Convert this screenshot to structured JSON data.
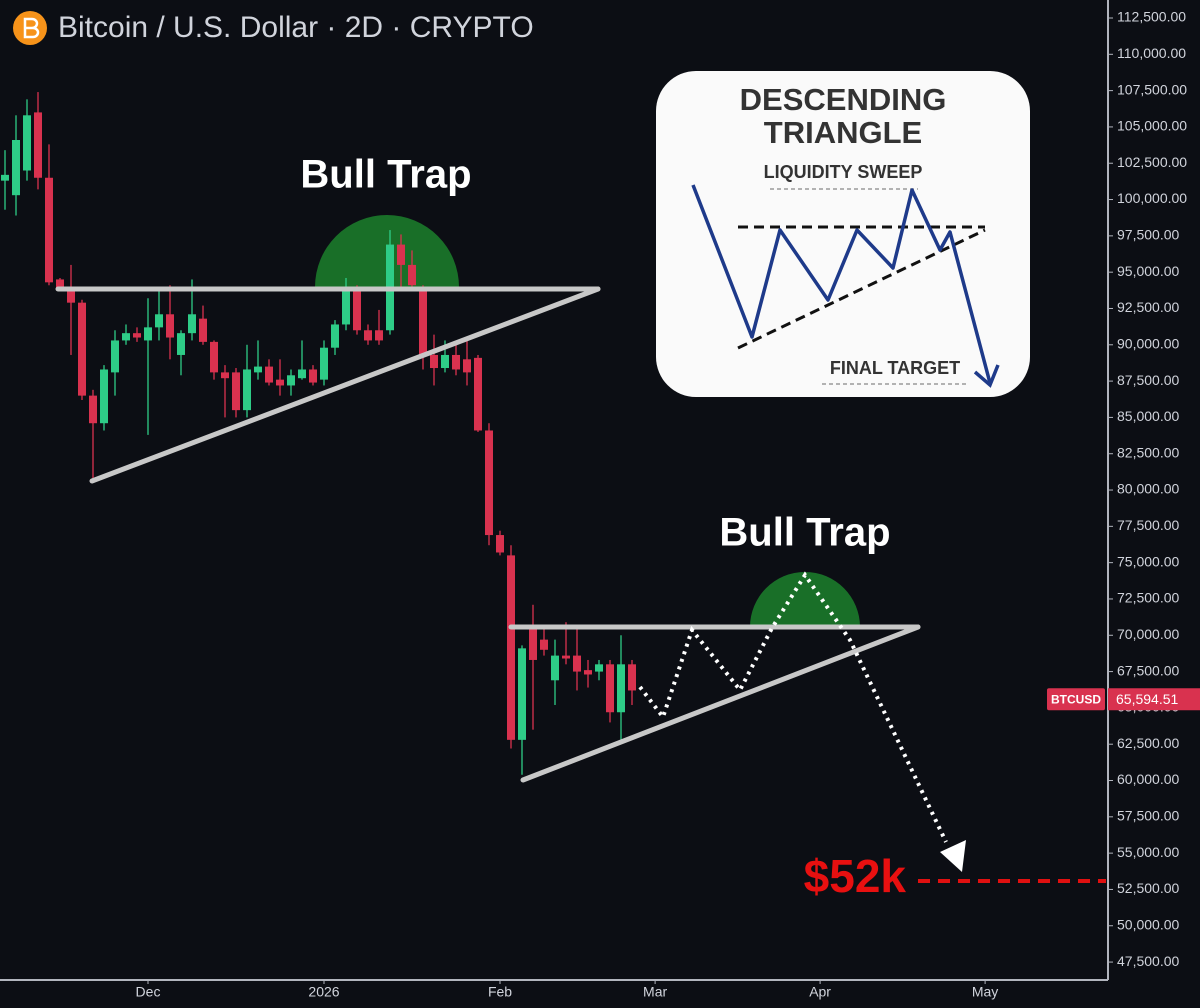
{
  "chart_data": {
    "type": "candlestick",
    "title": "Bitcoin / U.S. Dollar · 2D · CRYPTO",
    "up_color": "#2ecc87",
    "down_color": "#d9324f",
    "open": [
      101300,
      100300,
      102000,
      106000,
      101500,
      94500,
      93800,
      92900,
      86500,
      84600,
      88100,
      90300,
      90800,
      90300,
      91200,
      92100,
      89300,
      90800,
      91800,
      90200,
      88100,
      88100,
      85500,
      88100,
      88500,
      87600,
      87200,
      87700,
      88300,
      87600,
      89800,
      91400,
      93800,
      91000,
      91000,
      91000,
      96900,
      95500,
      93800,
      89300,
      88400,
      89300,
      89000,
      89100,
      84100,
      76900,
      75500,
      62800,
      70400,
      69700,
      66900,
      68600,
      68600,
      67600,
      67500,
      68000,
      64700,
      68000
    ],
    "high": [
      103400,
      105800,
      106900,
      107400,
      103800,
      94600,
      95500,
      93100,
      86900,
      88600,
      91000,
      91400,
      91200,
      93200,
      93800,
      94100,
      91000,
      94500,
      92700,
      90300,
      88600,
      88400,
      90000,
      90300,
      89000,
      89000,
      88300,
      90300,
      88600,
      90300,
      91700,
      94600,
      94100,
      91400,
      92400,
      97900,
      97600,
      96500,
      94100,
      90700,
      90300,
      90000,
      90300,
      89300,
      84600,
      77200,
      76200,
      69300,
      72100,
      70500,
      69700,
      70900,
      70400,
      68300,
      68300,
      68300,
      70000,
      68300
    ],
    "low": [
      99300,
      98900,
      101300,
      100700,
      94100,
      93800,
      89300,
      86200,
      80800,
      84100,
      86500,
      90000,
      90200,
      83800,
      90300,
      89000,
      87900,
      90300,
      90000,
      87600,
      85000,
      85000,
      85000,
      87600,
      87200,
      86500,
      86500,
      87600,
      87200,
      87200,
      89300,
      91000,
      90700,
      90000,
      90000,
      90700,
      93800,
      93800,
      88300,
      87200,
      88100,
      87900,
      87200,
      84000,
      76200,
      75500,
      62200,
      60400,
      63500,
      68600,
      65200,
      68000,
      66200,
      66400,
      66900,
      64000,
      62800,
      65200
    ],
    "close": [
      101700,
      104100,
      105800,
      101500,
      94300,
      93900,
      92900,
      86500,
      84600,
      88300,
      90300,
      90800,
      90500,
      91200,
      92100,
      90500,
      90800,
      92100,
      90200,
      88100,
      87700,
      85500,
      88300,
      88500,
      87400,
      87200,
      87900,
      88300,
      87400,
      89800,
      91400,
      93900,
      91000,
      90300,
      90300,
      96900,
      95500,
      94100,
      89300,
      88400,
      89300,
      88300,
      88100,
      84100,
      76900,
      75700,
      62800,
      69100,
      68300,
      69000,
      68600,
      68400,
      67500,
      67300,
      68000,
      64700,
      68000,
      66200
    ],
    "xlim": [
      -0.45,
      100.3
    ],
    "xticks": [
      {
        "value": 13,
        "label": "Dec"
      },
      {
        "value": 29,
        "label": "2026"
      },
      {
        "value": 45,
        "label": "Feb"
      },
      {
        "value": 59.1,
        "label": "Mar"
      },
      {
        "value": 74.1,
        "label": "Apr"
      },
      {
        "value": 89.1,
        "label": "May"
      }
    ],
    "ylim": [
      46265,
      113739
    ],
    "yticks": [
      {
        "value": 47500,
        "label": "47,500.00"
      },
      {
        "value": 50000,
        "label": "50,000.00"
      },
      {
        "value": 52500,
        "label": "52,500.00"
      },
      {
        "value": 55000,
        "label": "55,000.00"
      },
      {
        "value": 57500,
        "label": "57,500.00"
      },
      {
        "value": 60000,
        "label": "60,000.00"
      },
      {
        "value": 62500,
        "label": "62,500.00"
      },
      {
        "value": 65000,
        "label": "65,000.00"
      },
      {
        "value": 67500,
        "label": "67,500.00"
      },
      {
        "value": 70000,
        "label": "70,000.00"
      },
      {
        "value": 72500,
        "label": "72,500.00"
      },
      {
        "value": 75000,
        "label": "75,000.00"
      },
      {
        "value": 77500,
        "label": "77,500.00"
      },
      {
        "value": 80000,
        "label": "80,000.00"
      },
      {
        "value": 82500,
        "label": "82,500.00"
      },
      {
        "value": 85000,
        "label": "85,000.00"
      },
      {
        "value": 87500,
        "label": "87,500.00"
      },
      {
        "value": 90000,
        "label": "90,000.00"
      },
      {
        "value": 92500,
        "label": "92,500.00"
      },
      {
        "value": 95000,
        "label": "95,000.00"
      },
      {
        "value": 97500,
        "label": "97,500.00"
      },
      {
        "value": 100000,
        "label": "100,000.00"
      },
      {
        "value": 102500,
        "label": "102,500.00"
      },
      {
        "value": 105000,
        "label": "105,000.00"
      },
      {
        "value": 107500,
        "label": "107,500.00"
      },
      {
        "value": 110000,
        "label": "110,000.00"
      },
      {
        "value": 112500,
        "label": "112,500.00"
      }
    ],
    "last_price": {
      "symbol": "BTCUSD",
      "value": 65594.51,
      "value_label": "65,594.51"
    },
    "annotations": {
      "bull_trap_1": "Bull Trap",
      "bull_trap_2": "Bull Trap",
      "target": "$52k"
    },
    "inset": {
      "title_line1": "DESCENDING",
      "title_line2": "TRIANGLE",
      "top_label": "LIQUIDITY SWEEP",
      "bottom_label": "FINAL TARGET"
    }
  }
}
